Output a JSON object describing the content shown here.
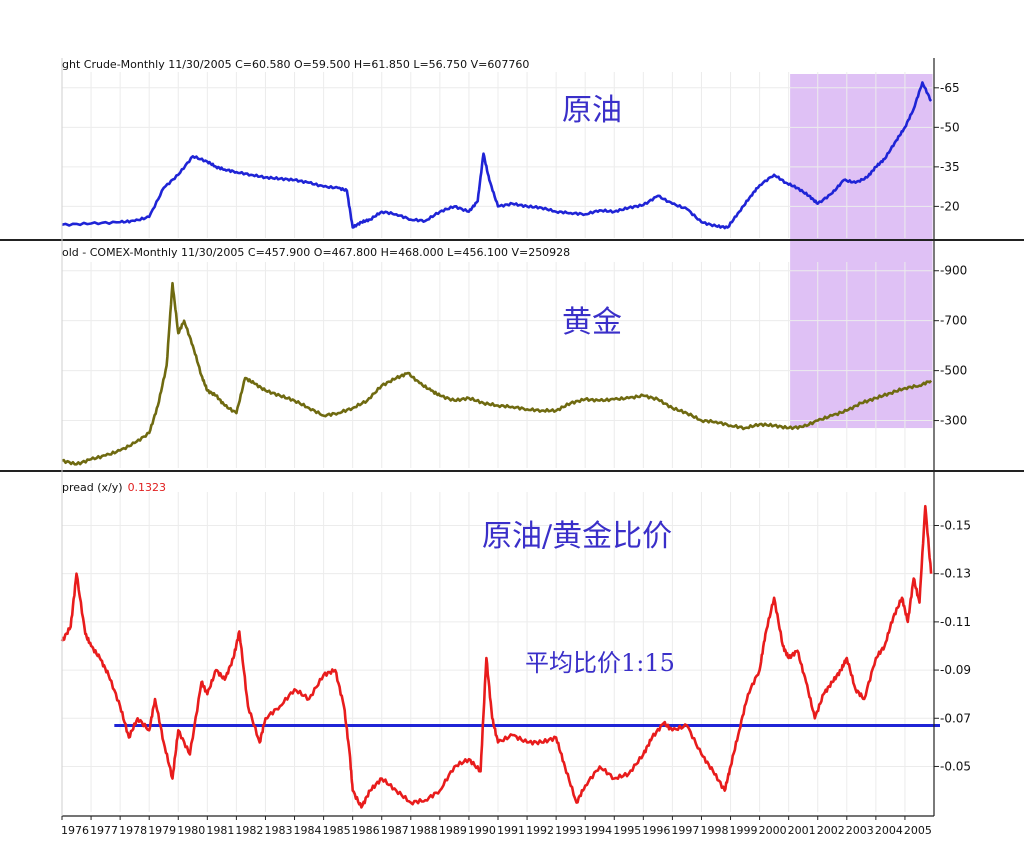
{
  "chart_data": [
    {
      "type": "line",
      "header": "ght Crude-Monthly  11/30/2005  C=60.580  O=59.500  H=61.850  L=56.750  V=607760",
      "label": "原油",
      "yticks": [
        20,
        35,
        50,
        65
      ],
      "ylim": [
        8,
        71
      ],
      "color": "#1f24d6",
      "x": [
        1976.0,
        1977.0,
        1978.0,
        1978.5,
        1979.0,
        1979.5,
        1980.0,
        1980.5,
        1981.0,
        1981.3,
        1981.6,
        1982.0,
        1982.5,
        1983.0,
        1983.5,
        1984.0,
        1984.5,
        1985.0,
        1985.5,
        1985.8,
        1986.0,
        1986.3,
        1986.6,
        1987.0,
        1987.5,
        1988.0,
        1988.5,
        1989.0,
        1989.5,
        1990.0,
        1990.3,
        1990.5,
        1990.7,
        1991.0,
        1991.5,
        1992.0,
        1992.5,
        1993.0,
        1993.5,
        1994.0,
        1994.5,
        1995.0,
        1995.5,
        1996.0,
        1996.5,
        1997.0,
        1997.5,
        1998.0,
        1998.5,
        1998.9,
        1999.3,
        1999.7,
        2000.0,
        2000.5,
        2000.9,
        2001.3,
        2001.7,
        2002.0,
        2002.5,
        2002.9,
        2003.3,
        2003.7,
        2004.0,
        2004.3,
        2004.7,
        2005.0,
        2005.3,
        2005.6,
        2005.9
      ],
      "values": [
        13,
        13.5,
        14,
        14.5,
        16,
        27,
        32,
        39,
        37,
        35,
        34,
        33,
        32,
        31,
        30.5,
        30,
        29,
        27.5,
        27,
        26,
        12,
        14,
        15,
        18,
        17,
        15,
        14.5,
        18,
        20,
        18,
        22,
        40,
        30,
        20,
        21,
        20,
        19.5,
        18,
        17.5,
        17,
        18.5,
        18,
        19.5,
        20.5,
        24,
        21,
        19,
        14,
        12.5,
        12,
        18,
        24,
        28,
        32,
        29,
        27,
        24,
        21,
        25,
        30,
        29,
        31,
        35,
        38,
        45,
        50,
        57,
        67,
        60
      ]
    },
    {
      "type": "line",
      "header": "old - COMEX-Monthly  11/30/2005  C=457.900  O=467.800  H=468.000  L=456.100  V=250928",
      "label": "黄金",
      "yticks": [
        300,
        500,
        700,
        900
      ],
      "ylim": [
        110,
        935
      ],
      "color": "#6f6a10",
      "x": [
        1976.0,
        1976.5,
        1977.0,
        1977.5,
        1978.0,
        1978.5,
        1979.0,
        1979.3,
        1979.6,
        1979.8,
        1980.0,
        1980.2,
        1980.5,
        1980.8,
        1981.0,
        1981.3,
        1981.6,
        1982.0,
        1982.3,
        1982.6,
        1983.0,
        1983.5,
        1984.0,
        1984.5,
        1985.0,
        1985.5,
        1986.0,
        1986.5,
        1987.0,
        1987.5,
        1987.9,
        1988.3,
        1988.7,
        1989.0,
        1989.5,
        1990.0,
        1990.5,
        1991.0,
        1991.5,
        1992.0,
        1992.5,
        1993.0,
        1993.5,
        1994.0,
        1994.5,
        1995.0,
        1995.5,
        1996.0,
        1996.5,
        1997.0,
        1997.5,
        1998.0,
        1998.5,
        1999.0,
        1999.5,
        2000.0,
        2000.5,
        2001.0,
        2001.5,
        2002.0,
        2002.5,
        2003.0,
        2003.5,
        2004.0,
        2004.5,
        2005.0,
        2005.5,
        2005.9
      ],
      "values": [
        140,
        125,
        145,
        160,
        180,
        210,
        250,
        360,
        520,
        850,
        650,
        700,
        600,
        480,
        420,
        400,
        360,
        330,
        470,
        450,
        420,
        400,
        380,
        350,
        320,
        330,
        350,
        380,
        440,
        470,
        490,
        450,
        420,
        400,
        380,
        390,
        370,
        360,
        355,
        345,
        340,
        340,
        370,
        385,
        380,
        385,
        390,
        400,
        385,
        350,
        330,
        300,
        295,
        280,
        270,
        285,
        280,
        270,
        275,
        300,
        320,
        340,
        370,
        390,
        410,
        430,
        440,
        460
      ]
    },
    {
      "type": "line",
      "header": "pread (x/y)",
      "header_value": "0.1323",
      "label": "原油/黄金比价",
      "annotation": "平均比价1:15",
      "yticks": [
        0.05,
        0.07,
        0.09,
        0.11,
        0.13,
        0.15
      ],
      "ylim": [
        0.0311,
        0.1639
      ],
      "color": "#e81c1c",
      "average_line": 0.067,
      "average_color": "#1f24d6",
      "x": [
        1976.0,
        1976.3,
        1976.5,
        1976.8,
        1977.0,
        1977.3,
        1977.6,
        1978.0,
        1978.3,
        1978.6,
        1979.0,
        1979.2,
        1979.5,
        1979.8,
        1980.0,
        1980.4,
        1980.8,
        1981.0,
        1981.3,
        1981.6,
        1981.9,
        1982.1,
        1982.4,
        1982.8,
        1983.0,
        1983.5,
        1984.0,
        1984.5,
        1985.0,
        1985.4,
        1985.7,
        1985.9,
        1986.0,
        1986.3,
        1986.6,
        1987.0,
        1987.5,
        1988.0,
        1988.5,
        1989.0,
        1989.5,
        1990.0,
        1990.4,
        1990.6,
        1990.8,
        1991.0,
        1991.5,
        1992.0,
        1992.5,
        1993.0,
        1993.3,
        1993.7,
        1994.0,
        1994.5,
        1995.0,
        1995.5,
        1996.0,
        1996.3,
        1996.7,
        1997.0,
        1997.5,
        1998.0,
        1998.4,
        1998.8,
        1999.0,
        1999.3,
        1999.6,
        2000.0,
        2000.2,
        2000.5,
        2000.8,
        2001.0,
        2001.3,
        2001.6,
        2001.9,
        2002.2,
        2002.5,
        2002.8,
        2003.0,
        2003.3,
        2003.6,
        2004.0,
        2004.3,
        2004.6,
        2004.9,
        2005.1,
        2005.3,
        2005.5,
        2005.7,
        2005.9
      ],
      "values": [
        0.102,
        0.108,
        0.13,
        0.105,
        0.1,
        0.095,
        0.088,
        0.075,
        0.062,
        0.07,
        0.065,
        0.078,
        0.06,
        0.045,
        0.065,
        0.055,
        0.085,
        0.08,
        0.09,
        0.086,
        0.095,
        0.106,
        0.075,
        0.06,
        0.07,
        0.075,
        0.082,
        0.078,
        0.088,
        0.09,
        0.075,
        0.055,
        0.04,
        0.033,
        0.04,
        0.045,
        0.04,
        0.035,
        0.036,
        0.04,
        0.05,
        0.053,
        0.048,
        0.095,
        0.07,
        0.06,
        0.063,
        0.06,
        0.06,
        0.062,
        0.05,
        0.035,
        0.042,
        0.05,
        0.045,
        0.047,
        0.055,
        0.062,
        0.068,
        0.065,
        0.067,
        0.055,
        0.048,
        0.04,
        0.05,
        0.065,
        0.08,
        0.09,
        0.105,
        0.12,
        0.1,
        0.095,
        0.098,
        0.085,
        0.07,
        0.08,
        0.085,
        0.09,
        0.095,
        0.082,
        0.078,
        0.095,
        0.1,
        0.112,
        0.12,
        0.11,
        0.128,
        0.118,
        0.158,
        0.13
      ]
    }
  ],
  "x_axis": {
    "labels": [
      "1976",
      "1977",
      "1978",
      "1979",
      "1980",
      "1981",
      "1982",
      "1983",
      "1984",
      "1985",
      "1986",
      "1987",
      "1988",
      "1989",
      "1990",
      "1991",
      "1992",
      "1993",
      "1994",
      "1995",
      "1996",
      "1997",
      "1998",
      "1999",
      "2000",
      "2001",
      "2002",
      "2003",
      "2004",
      "2005"
    ],
    "range": [
      1976.0,
      2006.0
    ]
  },
  "highlight": {
    "x_start": 2001.05,
    "x_end": 2005.95,
    "color": "#d9b6f3",
    "gold_y_low": 270
  }
}
